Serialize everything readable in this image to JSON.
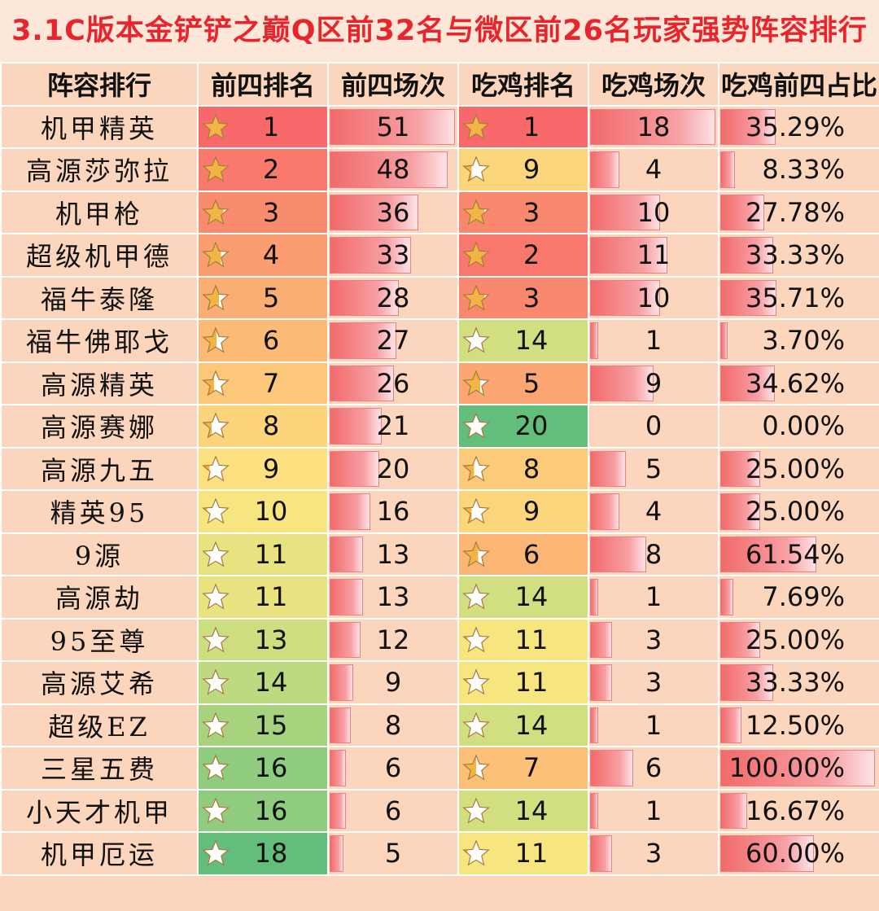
{
  "title": "3.1C版本金铲铲之巅Q区前32名与微区前26名玩家强势阵容排行",
  "headers": [
    "阵容排行",
    "前四排名",
    "前四场次",
    "吃鸡排名",
    "吃鸡场次",
    "吃鸡前四占比"
  ],
  "colors": {
    "title": "#e8242c",
    "background": "#fbd6bd",
    "rank_scale": [
      "#f8696b",
      "#fbb274",
      "#fde680",
      "#c3dc81",
      "#63be7b"
    ],
    "bar": "#f26a6a"
  },
  "rows": [
    {
      "name": "机甲精英",
      "top4_rank": "1",
      "top4_count": "51",
      "win_rank": "1",
      "win_count": "18",
      "ratio": "35.29%"
    },
    {
      "name": "高源莎弥拉",
      "top4_rank": "2",
      "top4_count": "48",
      "win_rank": "9",
      "win_count": "4",
      "ratio": "8.33%"
    },
    {
      "name": "机甲枪",
      "top4_rank": "3",
      "top4_count": "36",
      "win_rank": "3",
      "win_count": "10",
      "ratio": "27.78%"
    },
    {
      "name": "超级机甲德",
      "top4_rank": "4",
      "top4_count": "33",
      "win_rank": "2",
      "win_count": "11",
      "ratio": "33.33%"
    },
    {
      "name": "福牛泰隆",
      "top4_rank": "5",
      "top4_count": "28",
      "win_rank": "3",
      "win_count": "10",
      "ratio": "35.71%"
    },
    {
      "name": "福牛佛耶戈",
      "top4_rank": "6",
      "top4_count": "27",
      "win_rank": "14",
      "win_count": "1",
      "ratio": "3.70%"
    },
    {
      "name": "高源精英",
      "top4_rank": "7",
      "top4_count": "26",
      "win_rank": "5",
      "win_count": "9",
      "ratio": "34.62%"
    },
    {
      "name": "高源赛娜",
      "top4_rank": "8",
      "top4_count": "21",
      "win_rank": "20",
      "win_count": "0",
      "ratio": "0.00%"
    },
    {
      "name": "高源九五",
      "top4_rank": "9",
      "top4_count": "20",
      "win_rank": "8",
      "win_count": "5",
      "ratio": "25.00%"
    },
    {
      "name": "精英95",
      "top4_rank": "10",
      "top4_count": "16",
      "win_rank": "9",
      "win_count": "4",
      "ratio": "25.00%"
    },
    {
      "name": "9源",
      "top4_rank": "11",
      "top4_count": "13",
      "win_rank": "6",
      "win_count": "8",
      "ratio": "61.54%"
    },
    {
      "name": "高源劫",
      "top4_rank": "11",
      "top4_count": "13",
      "win_rank": "14",
      "win_count": "1",
      "ratio": "7.69%"
    },
    {
      "name": "95至尊",
      "top4_rank": "13",
      "top4_count": "12",
      "win_rank": "11",
      "win_count": "3",
      "ratio": "25.00%"
    },
    {
      "name": "高源艾希",
      "top4_rank": "14",
      "top4_count": "9",
      "win_rank": "11",
      "win_count": "3",
      "ratio": "33.33%"
    },
    {
      "name": "超级EZ",
      "top4_rank": "15",
      "top4_count": "8",
      "win_rank": "14",
      "win_count": "1",
      "ratio": "12.50%"
    },
    {
      "name": "三星五费",
      "top4_rank": "16",
      "top4_count": "6",
      "win_rank": "7",
      "win_count": "6",
      "ratio": "100.00%"
    },
    {
      "name": "小天才机甲",
      "top4_rank": "16",
      "top4_count": "6",
      "win_rank": "14",
      "win_count": "1",
      "ratio": "16.67%"
    },
    {
      "name": "机甲厄运",
      "top4_rank": "18",
      "top4_count": "5",
      "win_rank": "11",
      "win_count": "3",
      "ratio": "60.00%"
    }
  ]
}
